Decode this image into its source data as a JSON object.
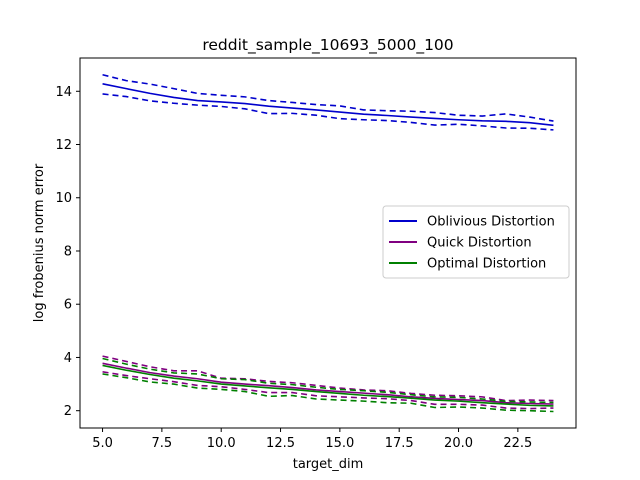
{
  "chart_data": {
    "type": "line",
    "title": "reddit_sample_10693_5000_100",
    "xlabel": "target_dim",
    "ylabel": "log frobenius norm error",
    "xlim": [
      4.05,
      24.95
    ],
    "ylim": [
      1.35,
      15.25
    ],
    "xticks": [
      5.0,
      7.5,
      10.0,
      12.5,
      15.0,
      17.5,
      20.0,
      22.5
    ],
    "xtick_labels": [
      "5.0",
      "7.5",
      "10.0",
      "12.5",
      "15.0",
      "17.5",
      "20.0",
      "22.5"
    ],
    "yticks": [
      2,
      4,
      6,
      8,
      10,
      12,
      14
    ],
    "ytick_labels": [
      "2",
      "4",
      "6",
      "8",
      "10",
      "12",
      "14"
    ],
    "grid": false,
    "legend_position": "center-right",
    "x": [
      5,
      6,
      7,
      8,
      9,
      10,
      11,
      12,
      13,
      14,
      15,
      16,
      17,
      18,
      19,
      20,
      21,
      22,
      23,
      24
    ],
    "series": [
      {
        "name": "Oblivious Distortion",
        "color": "#0000cc",
        "values": [
          14.28,
          14.1,
          13.92,
          13.77,
          13.65,
          13.6,
          13.54,
          13.44,
          13.37,
          13.3,
          13.22,
          13.14,
          13.09,
          13.03,
          12.98,
          12.93,
          12.89,
          12.87,
          12.82,
          12.72
        ],
        "upper": [
          14.62,
          14.4,
          14.27,
          14.1,
          13.92,
          13.85,
          13.79,
          13.65,
          13.58,
          13.5,
          13.45,
          13.3,
          13.27,
          13.25,
          13.2,
          13.1,
          13.07,
          13.15,
          13.03,
          12.88
        ],
        "lower": [
          13.9,
          13.8,
          13.64,
          13.55,
          13.48,
          13.43,
          13.34,
          13.16,
          13.17,
          13.1,
          12.97,
          12.93,
          12.9,
          12.83,
          12.73,
          12.76,
          12.7,
          12.62,
          12.61,
          12.55
        ]
      },
      {
        "name": "Quick Distortion",
        "color": "#800080",
        "values": [
          3.78,
          3.6,
          3.43,
          3.3,
          3.2,
          3.07,
          3.0,
          2.94,
          2.87,
          2.78,
          2.72,
          2.66,
          2.6,
          2.52,
          2.46,
          2.42,
          2.38,
          2.3,
          2.27,
          2.25
        ],
        "upper": [
          4.05,
          3.85,
          3.65,
          3.5,
          3.5,
          3.22,
          3.2,
          3.1,
          3.05,
          2.95,
          2.85,
          2.78,
          2.75,
          2.65,
          2.58,
          2.56,
          2.52,
          2.38,
          2.4,
          2.38
        ],
        "lower": [
          3.46,
          3.32,
          3.2,
          3.09,
          2.95,
          2.9,
          2.8,
          2.68,
          2.68,
          2.56,
          2.52,
          2.48,
          2.45,
          2.38,
          2.24,
          2.24,
          2.21,
          2.1,
          2.08,
          2.1
        ]
      },
      {
        "name": "Optimal Distortion",
        "color": "#008000",
        "values": [
          3.7,
          3.52,
          3.36,
          3.22,
          3.12,
          3.0,
          2.93,
          2.86,
          2.8,
          2.72,
          2.65,
          2.58,
          2.53,
          2.47,
          2.4,
          2.36,
          2.3,
          2.25,
          2.2,
          2.18
        ],
        "upper": [
          3.96,
          3.75,
          3.56,
          3.42,
          3.38,
          3.2,
          3.17,
          3.03,
          2.98,
          2.88,
          2.8,
          2.75,
          2.69,
          2.6,
          2.52,
          2.5,
          2.44,
          2.35,
          2.33,
          2.31
        ],
        "lower": [
          3.38,
          3.24,
          3.08,
          3.0,
          2.85,
          2.8,
          2.72,
          2.54,
          2.57,
          2.44,
          2.4,
          2.36,
          2.3,
          2.28,
          2.12,
          2.14,
          2.1,
          2.02,
          2.0,
          1.97
        ]
      }
    ]
  }
}
